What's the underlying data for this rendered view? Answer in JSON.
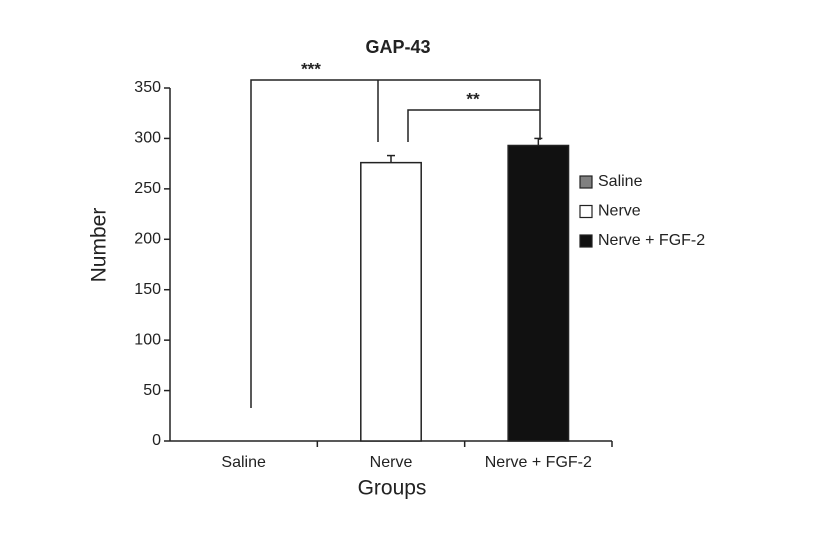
{
  "chart_data": {
    "type": "bar",
    "title": "GAP-43",
    "x_label": "Groups",
    "y_label": "Number",
    "categories": [
      "Saline",
      "Nerve",
      "Nerve + FGF-2"
    ],
    "series": [
      {
        "name": "Saline",
        "color": "#808080",
        "values": [
          0,
          null,
          null
        ],
        "errors": [
          0,
          null,
          null
        ]
      },
      {
        "name": "Nerve",
        "color": "#ffffff",
        "values": [
          null,
          276,
          null
        ],
        "errors": [
          null,
          7,
          null
        ]
      },
      {
        "name": "Nerve + FGF-2",
        "color": "#111111",
        "values": [
          null,
          null,
          293
        ],
        "errors": [
          null,
          null,
          7
        ]
      }
    ],
    "ylim": [
      0,
      350
    ],
    "yticks": [
      0,
      50,
      100,
      150,
      200,
      250,
      300,
      350
    ],
    "legend": "right",
    "annotations": [
      "***",
      "**"
    ]
  }
}
